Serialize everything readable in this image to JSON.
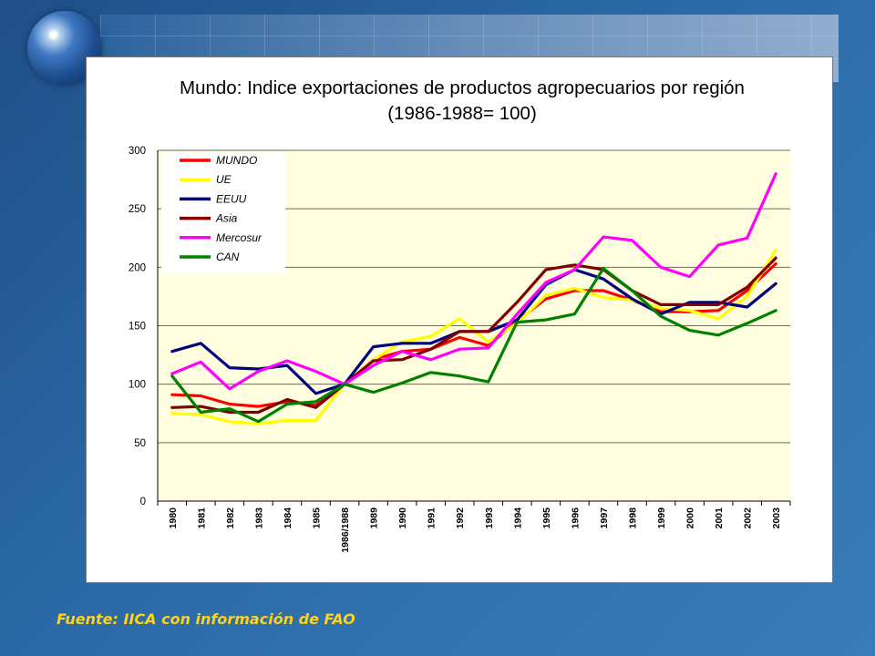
{
  "slide": {
    "source": "Fuente: IICA con información de FAO"
  },
  "chart_data": {
    "type": "line",
    "title": "Mundo: Indice exportaciones de productos agropecuarios por región",
    "subtitle": "(1986-1988= 100)",
    "xlabel": "",
    "ylabel": "",
    "ylim": [
      0,
      300
    ],
    "yticks": [
      0,
      50,
      100,
      150,
      200,
      250,
      300
    ],
    "grid": true,
    "legend_position": "top-left",
    "categories": [
      "1980",
      "1981",
      "1982",
      "1983",
      "1984",
      "1985",
      "1986/1988",
      "1989",
      "1990",
      "1991",
      "1992",
      "1993",
      "1994",
      "1995",
      "1996",
      "1997",
      "1998",
      "1999",
      "2000",
      "2001",
      "2002",
      "2003"
    ],
    "series": [
      {
        "name": "MUNDO",
        "color": "#ff0000",
        "values": [
          91,
          90,
          83,
          81,
          85,
          82,
          100,
          121,
          128,
          130,
          140,
          133,
          154,
          173,
          180,
          180,
          172,
          162,
          162,
          163,
          180,
          203
        ]
      },
      {
        "name": "UE",
        "color": "#ffff00",
        "values": [
          75,
          74,
          68,
          66,
          69,
          69,
          100,
          121,
          136,
          141,
          156,
          136,
          152,
          176,
          182,
          174,
          172,
          165,
          163,
          156,
          175,
          215
        ]
      },
      {
        "name": "EEUU",
        "color": "#000080",
        "values": [
          128,
          135,
          114,
          113,
          116,
          92,
          100,
          132,
          135,
          135,
          145,
          145,
          155,
          185,
          198,
          190,
          173,
          160,
          170,
          170,
          166,
          186
        ]
      },
      {
        "name": "Asia",
        "color": "#800000",
        "values": [
          80,
          81,
          76,
          76,
          87,
          80,
          100,
          120,
          121,
          130,
          145,
          145,
          170,
          198,
          202,
          198,
          180,
          168,
          168,
          168,
          183,
          208
        ]
      },
      {
        "name": "Mercosur",
        "color": "#ff00ff",
        "values": [
          109,
          119,
          96,
          111,
          120,
          111,
          100,
          116,
          128,
          121,
          130,
          131,
          160,
          187,
          198,
          226,
          223,
          200,
          192,
          219,
          225,
          280
        ]
      },
      {
        "name": "CAN",
        "color": "#008000",
        "values": [
          107,
          76,
          79,
          68,
          83,
          85,
          100,
          93,
          101,
          110,
          107,
          102,
          153,
          155,
          160,
          199,
          180,
          158,
          146,
          142,
          152,
          163
        ]
      }
    ]
  }
}
